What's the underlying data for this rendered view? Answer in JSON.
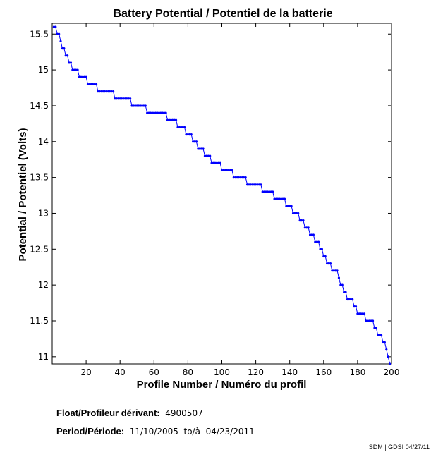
{
  "info": {
    "float_label": "Float/Profileur dérivant:",
    "float_value": "4900507",
    "period_label": "Period/Période:",
    "period_value": "11/10/2005  to/à  04/23/2011"
  },
  "footer": {
    "credit": "ISDM | GDSI 04/27/11"
  },
  "chart_data": {
    "type": "line",
    "title": "Battery Potential / Potentiel de la batterie",
    "xlabel": "Profile Number / Numéro du profil",
    "ylabel": "Potential / Potentiel (Volts)",
    "xlim": [
      0,
      200
    ],
    "ylim": [
      10.9,
      15.65
    ],
    "xticks": [
      20,
      40,
      60,
      80,
      100,
      120,
      140,
      160,
      180,
      200
    ],
    "yticks": [
      11,
      11.5,
      12,
      12.5,
      13,
      13.5,
      14,
      14.5,
      15,
      15.5
    ],
    "grid": false,
    "color": "#0000ff",
    "series": [
      {
        "steps": [
          [
            1,
            2,
            15.6
          ],
          [
            3,
            4,
            15.5
          ],
          [
            5,
            5,
            15.4
          ],
          [
            6,
            7,
            15.3
          ],
          [
            8,
            9,
            15.2
          ],
          [
            10,
            11,
            15.1
          ],
          [
            12,
            15,
            15.0
          ],
          [
            16,
            20,
            14.9
          ],
          [
            21,
            26,
            14.8
          ],
          [
            27,
            36,
            14.7
          ],
          [
            37,
            46,
            14.6
          ],
          [
            47,
            55,
            14.5
          ],
          [
            56,
            67,
            14.4
          ],
          [
            68,
            73,
            14.3
          ],
          [
            74,
            78,
            14.2
          ],
          [
            79,
            82,
            14.1
          ],
          [
            83,
            85,
            14.0
          ],
          [
            86,
            89,
            13.9
          ],
          [
            90,
            93,
            13.8
          ],
          [
            94,
            99,
            13.7
          ],
          [
            100,
            106,
            13.6
          ],
          [
            107,
            114,
            13.5
          ],
          [
            115,
            123,
            13.4
          ],
          [
            124,
            130,
            13.3
          ],
          [
            131,
            137,
            13.2
          ],
          [
            138,
            141,
            13.1
          ],
          [
            142,
            145,
            13.0
          ],
          [
            146,
            148,
            12.9
          ],
          [
            149,
            151,
            12.8
          ],
          [
            152,
            154,
            12.7
          ],
          [
            155,
            157,
            12.6
          ],
          [
            158,
            159,
            12.5
          ],
          [
            160,
            161,
            12.4
          ],
          [
            162,
            164,
            12.3
          ],
          [
            165,
            168,
            12.2
          ],
          [
            169,
            169,
            12.1
          ],
          [
            170,
            171,
            12.0
          ],
          [
            172,
            173,
            11.9
          ],
          [
            174,
            177,
            11.8
          ],
          [
            178,
            179,
            11.7
          ],
          [
            180,
            184,
            11.6
          ],
          [
            185,
            189,
            11.5
          ],
          [
            190,
            191,
            11.4
          ],
          [
            192,
            194,
            11.3
          ],
          [
            195,
            196,
            11.2
          ],
          [
            197,
            197,
            11.1
          ],
          [
            198,
            198,
            11.0
          ],
          [
            199,
            199,
            10.9
          ]
        ]
      }
    ]
  }
}
